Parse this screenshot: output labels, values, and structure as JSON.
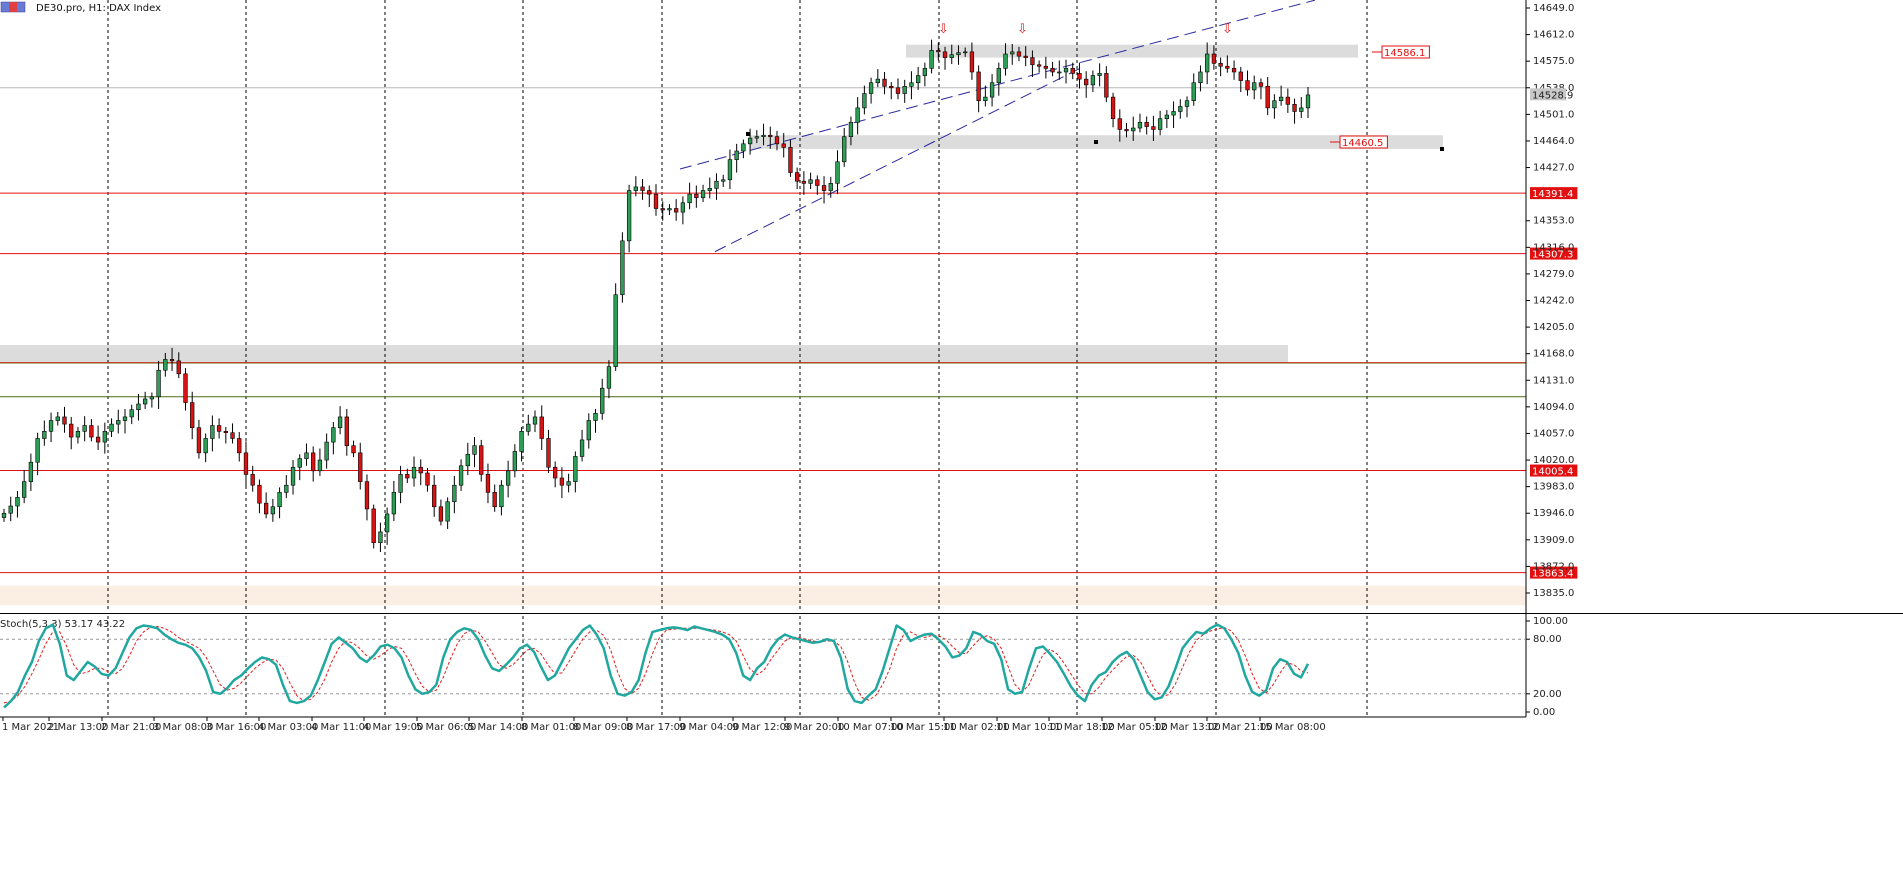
{
  "window": {
    "title": "DE30.pro, H1:  DAX Index",
    "colors": {
      "background": "#ffffff",
      "bull": "#2e9e57",
      "bear": "#d71414",
      "grid": "#000000"
    }
  },
  "chart_data": {
    "type": "candlestick",
    "symbol": "DE30.pro",
    "timeframe": "H1",
    "ylim": [
      13818,
      14660
    ],
    "y_ticks": [
      "14649.0",
      "14612.0",
      "14575.0",
      "14538.0",
      "14501.0",
      "14464.0",
      "14427.0",
      "14353.0",
      "14316.0",
      "14279.0",
      "14242.0",
      "14205.0",
      "14168.0",
      "14131.0",
      "14094.0",
      "14057.0",
      "14020.0",
      "13983.0",
      "13946.0",
      "13909.0",
      "13872.0",
      "13835.0"
    ],
    "x_ticks": [
      "1 Mar 2021",
      "2 Mar 13:00",
      "2 Mar 21:00",
      "3 Mar 08:00",
      "3 Mar 16:00",
      "4 Mar 03:00",
      "4 Mar 11:00",
      "4 Mar 19:00",
      "5 Mar 06:00",
      "5 Mar 14:00",
      "8 Mar 01:00",
      "8 Mar 09:00",
      "8 Mar 17:00",
      "9 Mar 04:00",
      "9 Mar 12:00",
      "9 Mar 20:00",
      "10 Mar 07:00",
      "10 Mar 15:00",
      "11 Mar 02:00",
      "11 Mar 10:00",
      "11 Mar 18:00",
      "12 Mar 05:00",
      "12 Mar 13:00",
      "12 Mar 21:00",
      "15 Mar 08:00"
    ],
    "current_price": "14528.9",
    "candles_close": [
      13946,
      13956,
      13968,
      13990,
      14017,
      14050,
      14060,
      14075,
      14080,
      14070,
      14052,
      14060,
      14068,
      14052,
      14045,
      14060,
      14070,
      14075,
      14080,
      14090,
      14098,
      14105,
      14108,
      14145,
      14160,
      14158,
      14140,
      14100,
      14065,
      14030,
      14050,
      14068,
      14060,
      14058,
      14050,
      14030,
      14000,
      13985,
      13960,
      13945,
      13955,
      13975,
      13985,
      14010,
      14022,
      14030,
      14005,
      14020,
      14045,
      14065,
      14080,
      14040,
      14030,
      13990,
      13952,
      13905,
      13920,
      13945,
      13975,
      14000,
      13995,
      14010,
      14002,
      13985,
      13955,
      13935,
      13962,
      13985,
      14012,
      14028,
      14040,
      14000,
      13975,
      13955,
      13985,
      14005,
      14032,
      14060,
      14070,
      14080,
      14050,
      14010,
      13995,
      13985,
      13990,
      14025,
      14048,
      14075,
      14085,
      14120,
      14150,
      14250,
      14325,
      14395,
      14400,
      14395,
      14390,
      14370,
      14368,
      14370,
      14365,
      14378,
      14390,
      14385,
      14395,
      14398,
      14408,
      14410,
      14438,
      14450,
      14460,
      14468,
      14470,
      14472,
      14470,
      14460,
      14455,
      14420,
      14408,
      14405,
      14410,
      14402,
      14395,
      14405,
      14435,
      14470,
      14490,
      14510,
      14530,
      14545,
      14550,
      14540,
      14538,
      14530,
      14540,
      14545,
      14555,
      14565,
      14590,
      14588,
      14580,
      14584,
      14587,
      14588,
      14560,
      14520,
      14525,
      14545,
      14565,
      14585,
      14588,
      14582,
      14580,
      14570,
      14568,
      14565,
      14560,
      14560,
      14565,
      14558,
      14550,
      14542,
      14555,
      14558,
      14525,
      14495,
      14480,
      14478,
      14482,
      14490,
      14484,
      14480,
      14495,
      14500,
      14505,
      14512,
      14520,
      14545,
      14560,
      14585,
      14572,
      14568,
      14565,
      14560,
      14548,
      14535,
      14545,
      14540,
      14510,
      14520,
      14525,
      14515,
      14505,
      14510,
      14528
    ]
  },
  "levels": [
    {
      "label": "14586.1",
      "kind": "resistance-zone"
    },
    {
      "label": "14460.5",
      "kind": "support-zone"
    },
    {
      "label": "14391.4",
      "kind": "horizontal-line"
    },
    {
      "label": "14307.3",
      "kind": "horizontal-line"
    },
    {
      "label": "14005.4",
      "kind": "horizontal-line"
    },
    {
      "label": "13863.4",
      "kind": "horizontal-line"
    }
  ],
  "indicator": {
    "title": "Stoch(5,3,3) 53.17 43.22",
    "ticks": [
      "100.00",
      "80.00",
      "20.00",
      "0.00"
    ],
    "k_values": [
      5,
      12,
      22,
      40,
      55,
      78,
      92,
      96,
      75,
      40,
      35,
      45,
      55,
      50,
      42,
      40,
      48,
      65,
      82,
      92,
      95,
      94,
      92,
      85,
      80,
      76,
      74,
      70,
      60,
      45,
      22,
      20,
      26,
      35,
      40,
      48,
      55,
      60,
      58,
      52,
      30,
      12,
      10,
      12,
      18,
      35,
      55,
      75,
      82,
      76,
      70,
      60,
      55,
      62,
      72,
      74,
      70,
      60,
      40,
      25,
      20,
      22,
      30,
      60,
      80,
      88,
      92,
      90,
      80,
      62,
      48,
      45,
      52,
      60,
      70,
      74,
      66,
      50,
      35,
      40,
      55,
      70,
      80,
      90,
      95,
      85,
      70,
      40,
      20,
      18,
      22,
      35,
      65,
      88,
      90,
      92,
      93,
      92,
      90,
      94,
      92,
      90,
      88,
      85,
      80,
      65,
      40,
      35,
      48,
      55,
      70,
      80,
      85,
      82,
      80,
      78,
      76,
      77,
      80,
      78,
      60,
      25,
      12,
      10,
      18,
      25,
      45,
      70,
      95,
      90,
      78,
      82,
      85,
      86,
      80,
      72,
      60,
      62,
      70,
      88,
      85,
      78,
      75,
      58,
      25,
      20,
      22,
      48,
      70,
      72,
      64,
      55,
      42,
      28,
      18,
      12,
      30,
      40,
      44,
      55,
      62,
      66,
      58,
      40,
      22,
      14,
      16,
      28,
      48,
      70,
      80,
      88,
      86,
      92,
      96,
      92,
      80,
      65,
      40,
      22,
      18,
      24,
      48,
      58,
      55,
      42,
      38,
      53
    ],
    "d_values": [
      10,
      12,
      18,
      28,
      42,
      58,
      75,
      88,
      88,
      72,
      52,
      42,
      44,
      48,
      48,
      44,
      42,
      48,
      62,
      78,
      88,
      93,
      94,
      92,
      88,
      82,
      78,
      74,
      70,
      60,
      45,
      30,
      24,
      26,
      32,
      40,
      48,
      54,
      58,
      57,
      48,
      32,
      18,
      12,
      14,
      22,
      36,
      55,
      70,
      78,
      76,
      70,
      62,
      58,
      62,
      68,
      72,
      70,
      58,
      42,
      28,
      22,
      24,
      38,
      58,
      75,
      86,
      90,
      88,
      78,
      65,
      52,
      48,
      52,
      60,
      68,
      70,
      64,
      52,
      42,
      43,
      55,
      68,
      80,
      88,
      90,
      84,
      68,
      44,
      26,
      20,
      26,
      42,
      64,
      82,
      90,
      91,
      92,
      92,
      92,
      92,
      91,
      90,
      88,
      85,
      78,
      62,
      47,
      41,
      46,
      58,
      68,
      78,
      82,
      82,
      80,
      78,
      77,
      78,
      78,
      72,
      55,
      32,
      16,
      13,
      18,
      30,
      47,
      70,
      85,
      88,
      84,
      82,
      84,
      84,
      80,
      72,
      65,
      64,
      73,
      81,
      84,
      80,
      70,
      50,
      30,
      22,
      30,
      47,
      63,
      69,
      64,
      54,
      42,
      30,
      20,
      20,
      27,
      38,
      46,
      54,
      61,
      62,
      55,
      40,
      25,
      17,
      19,
      31,
      49,
      66,
      79,
      85,
      89,
      91,
      93,
      89,
      79,
      62,
      42,
      26,
      21,
      30,
      43,
      54,
      52,
      45,
      43
    ]
  },
  "annotations": {
    "arrow_glyph": "⇩"
  }
}
